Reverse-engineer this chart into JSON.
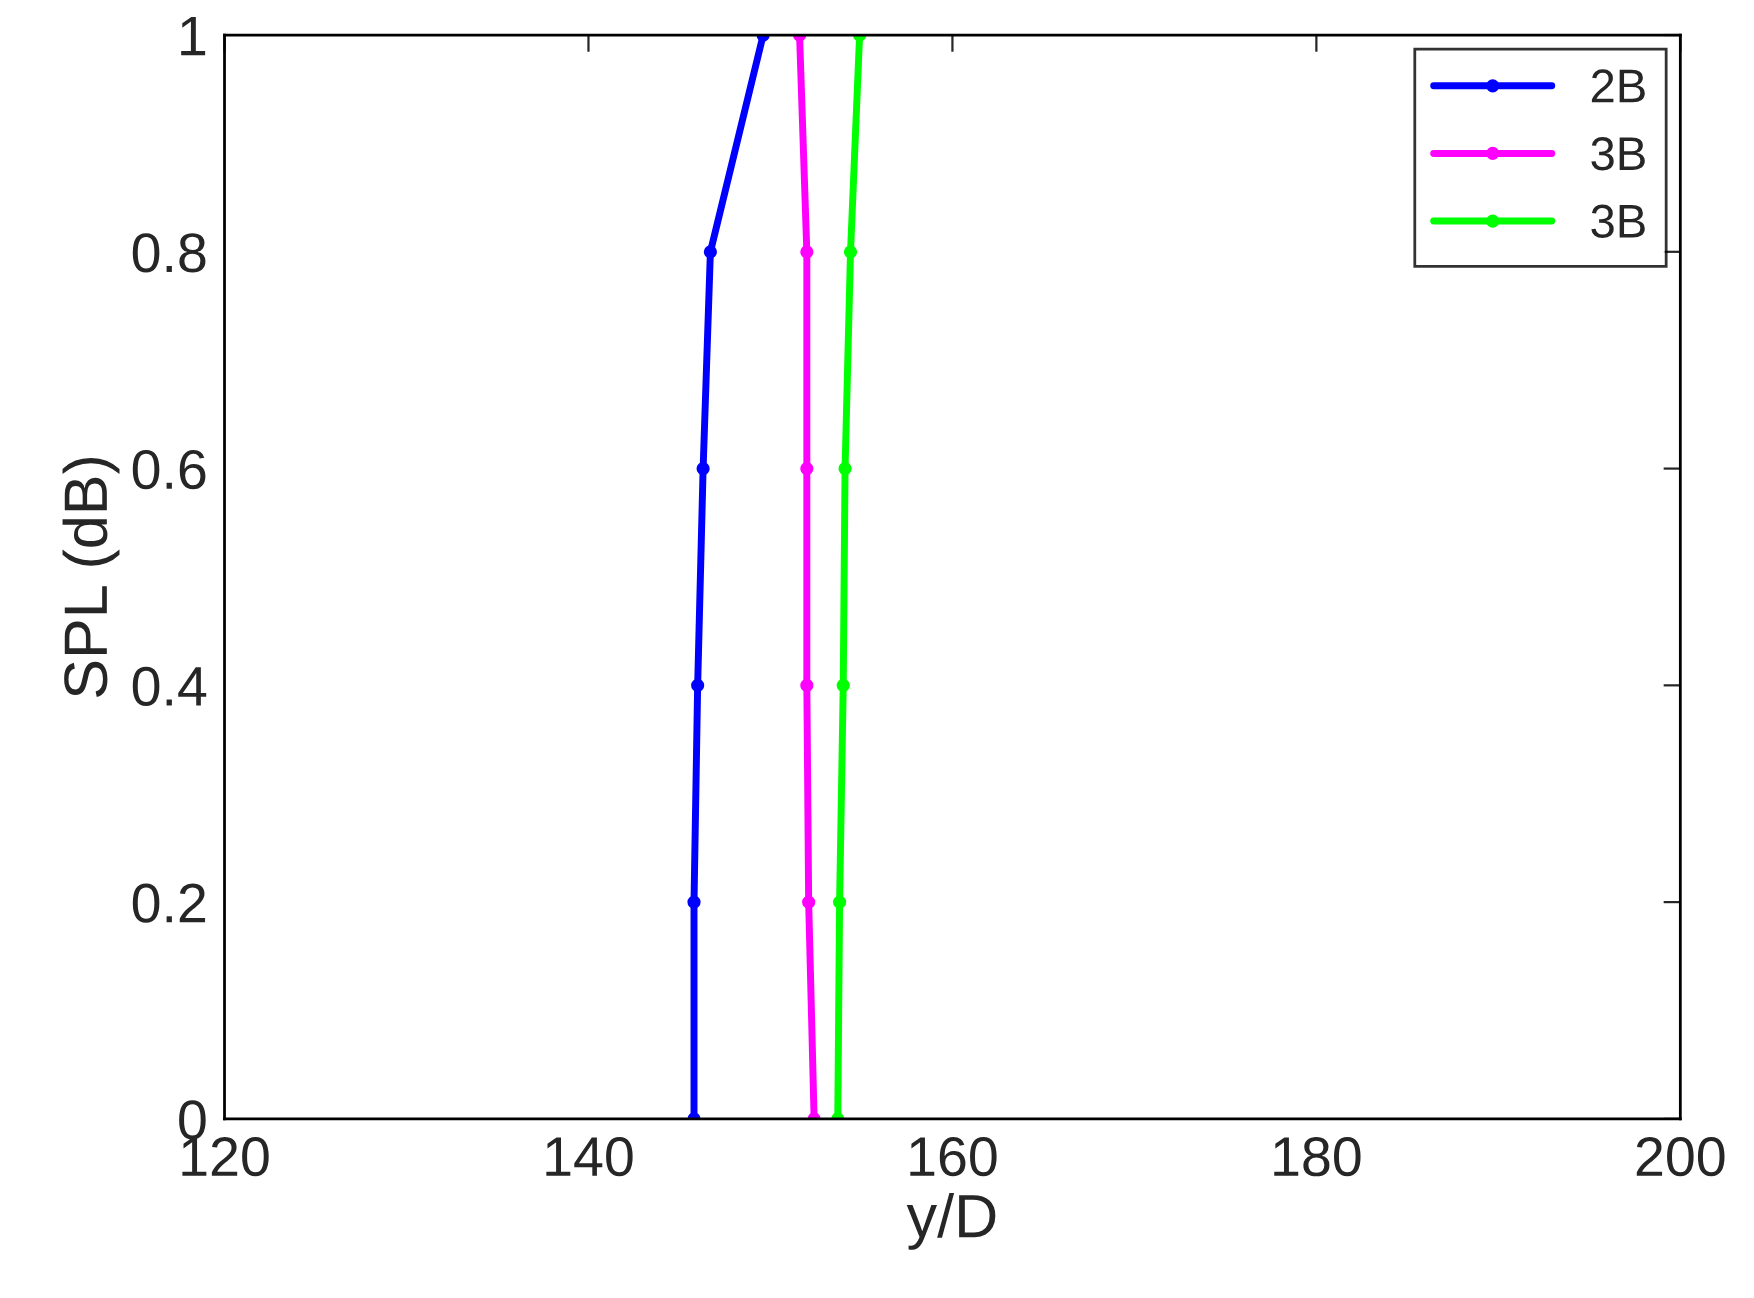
{
  "chart_data": {
    "type": "line",
    "xlabel": "y/D",
    "ylabel": "SPL (dB)",
    "xlim": [
      120,
      200
    ],
    "xticks": [
      120,
      140,
      160,
      180,
      200
    ],
    "ylim": [
      0,
      1
    ],
    "yticks": [
      0,
      0.2,
      0.4,
      0.6,
      0.8,
      1
    ],
    "grid": false,
    "legend": "top right",
    "marker": "circle",
    "line_style": "solid",
    "series": [
      {
        "name": "2B",
        "color": "#0000ff",
        "x": [
          145.8,
          145.8,
          146.0,
          146.3,
          146.7,
          149.6
        ],
        "values": [
          0,
          0.2,
          0.4,
          0.6,
          0.8,
          1
        ]
      },
      {
        "name": "3B",
        "color": "#ff00ff",
        "x": [
          152.4,
          152.1,
          152.0,
          152.0,
          152.0,
          151.6
        ],
        "values": [
          0,
          0.2,
          0.4,
          0.6,
          0.8,
          1
        ]
      },
      {
        "name": "3B",
        "color": "#00ff00",
        "x": [
          153.7,
          153.8,
          154.0,
          154.1,
          154.4,
          154.9
        ],
        "values": [
          0,
          0.2,
          0.4,
          0.6,
          0.8,
          1
        ]
      }
    ]
  }
}
